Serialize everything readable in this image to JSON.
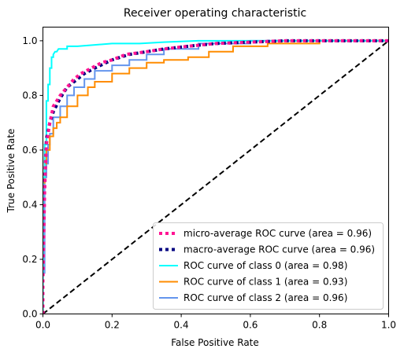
{
  "chart_data": {
    "type": "line",
    "title": "Receiver operating characteristic",
    "xlabel": "False Positive Rate",
    "ylabel": "True Positive Rate",
    "xlim": [
      0.0,
      1.0
    ],
    "ylim": [
      0.0,
      1.05
    ],
    "xticks": [
      0.0,
      0.2,
      0.4,
      0.6,
      0.8,
      1.0
    ],
    "yticks": [
      0.0,
      0.2,
      0.4,
      0.6,
      0.8,
      1.0
    ],
    "xtick_labels": [
      "0.0",
      "0.2",
      "0.4",
      "0.6",
      "0.8",
      "1.0"
    ],
    "ytick_labels": [
      "0.0",
      "0.2",
      "0.4",
      "0.6",
      "0.8",
      "1.0"
    ],
    "grid": false,
    "legend_position": "lower-right",
    "series": [
      {
        "name": "micro-average ROC curve (area = 0.96)",
        "color": "#ff1493",
        "style": "dotted",
        "x": [
          0.0,
          0.0,
          0.005,
          0.01,
          0.02,
          0.03,
          0.05,
          0.07,
          0.09,
          0.11,
          0.14,
          0.17,
          0.2,
          0.24,
          0.3,
          0.35,
          0.42,
          0.5,
          0.6,
          0.7,
          0.8,
          1.0
        ],
        "y": [
          0.0,
          0.12,
          0.45,
          0.62,
          0.7,
          0.76,
          0.8,
          0.83,
          0.86,
          0.88,
          0.9,
          0.92,
          0.93,
          0.95,
          0.96,
          0.97,
          0.98,
          0.99,
          0.995,
          1.0,
          1.0,
          1.0
        ]
      },
      {
        "name": "macro-average ROC curve (area = 0.96)",
        "color": "#000080",
        "style": "dotted",
        "x": [
          0.0,
          0.0,
          0.005,
          0.01,
          0.02,
          0.03,
          0.05,
          0.07,
          0.1,
          0.12,
          0.15,
          0.2,
          0.25,
          0.3,
          0.35,
          0.42,
          0.5,
          0.6,
          0.7,
          0.85,
          1.0
        ],
        "y": [
          0.0,
          0.15,
          0.48,
          0.64,
          0.7,
          0.74,
          0.79,
          0.83,
          0.86,
          0.88,
          0.9,
          0.93,
          0.95,
          0.96,
          0.97,
          0.98,
          0.99,
          0.995,
          1.0,
          1.0,
          1.0
        ]
      },
      {
        "name": "ROC curve of class 0 (area = 0.98)",
        "color": "#00ffff",
        "style": "solid",
        "x": [
          0.0,
          0.0,
          0.005,
          0.005,
          0.01,
          0.01,
          0.015,
          0.015,
          0.02,
          0.02,
          0.025,
          0.025,
          0.03,
          0.03,
          0.035,
          0.04,
          0.045,
          0.05,
          0.07,
          0.07,
          0.1,
          0.15,
          0.2,
          0.28,
          0.35,
          0.45,
          0.6,
          0.8,
          1.0
        ],
        "y": [
          0.0,
          0.5,
          0.5,
          0.62,
          0.62,
          0.78,
          0.78,
          0.84,
          0.84,
          0.9,
          0.9,
          0.94,
          0.94,
          0.95,
          0.96,
          0.96,
          0.97,
          0.97,
          0.97,
          0.98,
          0.98,
          0.985,
          0.99,
          0.99,
          0.995,
          1.0,
          1.0,
          1.0,
          1.0
        ]
      },
      {
        "name": "ROC curve of class 1 (area = 0.93)",
        "color": "#ff8c00",
        "style": "solid",
        "x": [
          0.0,
          0.0,
          0.005,
          0.005,
          0.01,
          0.01,
          0.02,
          0.02,
          0.03,
          0.03,
          0.04,
          0.04,
          0.05,
          0.05,
          0.07,
          0.07,
          0.1,
          0.1,
          0.13,
          0.13,
          0.15,
          0.15,
          0.2,
          0.2,
          0.25,
          0.25,
          0.3,
          0.3,
          0.35,
          0.35,
          0.42,
          0.42,
          0.48,
          0.48,
          0.55,
          0.55,
          0.65,
          0.65,
          0.8,
          0.8,
          1.0
        ],
        "y": [
          0.0,
          0.48,
          0.48,
          0.55,
          0.55,
          0.6,
          0.6,
          0.65,
          0.65,
          0.68,
          0.68,
          0.7,
          0.7,
          0.72,
          0.72,
          0.76,
          0.76,
          0.8,
          0.8,
          0.83,
          0.83,
          0.85,
          0.85,
          0.88,
          0.88,
          0.9,
          0.9,
          0.92,
          0.92,
          0.93,
          0.93,
          0.94,
          0.94,
          0.96,
          0.96,
          0.98,
          0.98,
          0.99,
          0.99,
          1.0,
          1.0
        ]
      },
      {
        "name": "ROC curve of class 2 (area = 0.96)",
        "color": "#6495ed",
        "style": "solid",
        "x": [
          0.0,
          0.0,
          0.005,
          0.005,
          0.01,
          0.01,
          0.015,
          0.015,
          0.02,
          0.02,
          0.03,
          0.03,
          0.05,
          0.05,
          0.07,
          0.07,
          0.09,
          0.09,
          0.12,
          0.12,
          0.15,
          0.15,
          0.2,
          0.2,
          0.25,
          0.25,
          0.3,
          0.3,
          0.35,
          0.35,
          0.45,
          0.45,
          0.6,
          0.6,
          1.0
        ],
        "y": [
          0.0,
          0.15,
          0.15,
          0.5,
          0.5,
          0.55,
          0.55,
          0.62,
          0.62,
          0.66,
          0.66,
          0.72,
          0.72,
          0.76,
          0.76,
          0.8,
          0.8,
          0.83,
          0.83,
          0.86,
          0.86,
          0.89,
          0.89,
          0.91,
          0.91,
          0.93,
          0.93,
          0.95,
          0.95,
          0.97,
          0.97,
          0.99,
          0.99,
          1.0,
          1.0
        ]
      }
    ],
    "reference_line": {
      "color": "#000000",
      "style": "dashed",
      "x": [
        0.0,
        1.0
      ],
      "y": [
        0.0,
        1.0
      ]
    }
  }
}
